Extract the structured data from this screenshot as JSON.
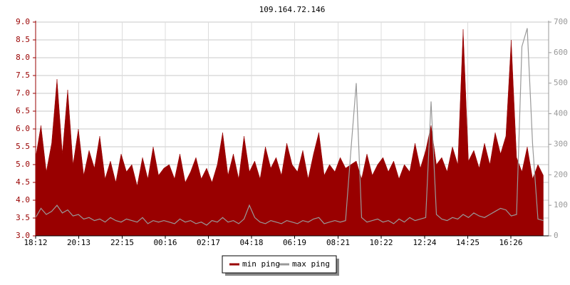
{
  "chart_data": {
    "type": "line",
    "title": "109.164.72.146",
    "x": [
      0,
      15,
      30,
      45,
      60,
      75,
      90,
      105,
      120,
      135,
      150,
      165,
      180,
      195,
      210,
      225,
      240,
      255,
      270,
      285,
      300,
      315,
      330,
      345,
      360,
      375,
      390,
      405,
      420,
      435,
      450,
      465,
      480,
      495,
      510,
      525,
      540,
      555,
      570,
      585,
      600,
      615,
      630,
      645,
      660,
      675,
      690,
      705,
      720,
      735,
      750,
      765,
      780,
      795,
      810,
      825,
      840,
      855,
      870,
      885,
      900,
      915,
      930,
      945,
      960,
      975,
      990,
      1005,
      1020,
      1035,
      1050,
      1065,
      1080,
      1095,
      1110,
      1125,
      1140,
      1155,
      1170,
      1185,
      1200,
      1215,
      1230,
      1245,
      1260,
      1275,
      1290,
      1305,
      1320,
      1335,
      1350,
      1365,
      1380,
      1395,
      1410,
      1425
    ],
    "xlim": [
      0,
      1440
    ],
    "xticks": [
      {
        "value": 0,
        "label": "18:12"
      },
      {
        "value": 121,
        "label": "20:13"
      },
      {
        "value": 243,
        "label": "22:15"
      },
      {
        "value": 364,
        "label": "00:16"
      },
      {
        "value": 485,
        "label": "02:17"
      },
      {
        "value": 606,
        "label": "04:18"
      },
      {
        "value": 727,
        "label": "06:19"
      },
      {
        "value": 849,
        "label": "08:21"
      },
      {
        "value": 970,
        "label": "10:22"
      },
      {
        "value": 1092,
        "label": "12:24"
      },
      {
        "value": 1213,
        "label": "14:25"
      },
      {
        "value": 1334,
        "label": "16:26"
      }
    ],
    "ylim": [
      3,
      9
    ],
    "yticks": [
      {
        "value": 3,
        "label": "3.0"
      },
      {
        "value": 3.5,
        "label": "3.5"
      },
      {
        "value": 4,
        "label": "4.0"
      },
      {
        "value": 4.5,
        "label": "4.5"
      },
      {
        "value": 5,
        "label": "5.0"
      },
      {
        "value": 5.5,
        "label": "5.5"
      },
      {
        "value": 6,
        "label": "6.0"
      },
      {
        "value": 6.5,
        "label": "6.5"
      },
      {
        "value": 7,
        "label": "7.0"
      },
      {
        "value": 7.5,
        "label": "7.5"
      },
      {
        "value": 8,
        "label": "8.0"
      },
      {
        "value": 8.5,
        "label": "8.5"
      },
      {
        "value": 9,
        "label": "9.0"
      }
    ],
    "y2lim": [
      0,
      700
    ],
    "y2ticks": [
      0,
      100,
      200,
      300,
      400,
      500,
      600,
      700
    ],
    "grid": true,
    "legend": "bottom",
    "series": [
      {
        "name": "min ping",
        "color": "#990000",
        "values": [
          5.2,
          6.1,
          4.8,
          5.6,
          7.4,
          5.3,
          7.1,
          5.0,
          6.0,
          4.7,
          5.4,
          4.9,
          5.8,
          4.6,
          5.1,
          4.5,
          5.3,
          4.8,
          5.0,
          4.4,
          5.2,
          4.6,
          5.5,
          4.7,
          4.9,
          5.0,
          4.6,
          5.3,
          4.5,
          4.8,
          5.2,
          4.6,
          4.9,
          4.5,
          5.0,
          5.9,
          4.7,
          5.3,
          4.6,
          5.8,
          4.8,
          5.1,
          4.6,
          5.5,
          4.9,
          5.2,
          4.7,
          5.6,
          5.0,
          4.8,
          5.4,
          4.6,
          5.3,
          5.9,
          4.7,
          5.0,
          4.8,
          5.2,
          4.9,
          5.0,
          5.1,
          4.6,
          5.3,
          4.7,
          5.0,
          5.2,
          4.8,
          5.1,
          4.6,
          5.0,
          4.8,
          5.6,
          4.9,
          5.4,
          6.1,
          5.0,
          5.2,
          4.8,
          5.5,
          5.0,
          8.8,
          5.1,
          5.4,
          4.9,
          5.6,
          5.0,
          5.9,
          5.3,
          5.8,
          8.5,
          5.2,
          4.8,
          5.5,
          4.6,
          5.0,
          4.7
        ]
      },
      {
        "name": "max ping",
        "color": "#999999",
        "axis": "y2",
        "values": [
          60,
          90,
          70,
          80,
          100,
          75,
          85,
          65,
          70,
          55,
          60,
          50,
          55,
          45,
          60,
          50,
          45,
          55,
          50,
          45,
          60,
          40,
          50,
          45,
          50,
          45,
          40,
          55,
          45,
          50,
          40,
          45,
          35,
          50,
          45,
          60,
          45,
          50,
          40,
          55,
          100,
          60,
          45,
          40,
          50,
          45,
          40,
          50,
          45,
          40,
          50,
          45,
          55,
          60,
          40,
          45,
          50,
          45,
          50,
          280,
          500,
          60,
          45,
          50,
          55,
          45,
          50,
          40,
          55,
          45,
          60,
          50,
          55,
          60,
          440,
          70,
          55,
          50,
          60,
          55,
          70,
          60,
          75,
          65,
          60,
          70,
          80,
          90,
          85,
          65,
          70,
          620,
          680,
          300,
          55,
          50
        ]
      }
    ]
  }
}
